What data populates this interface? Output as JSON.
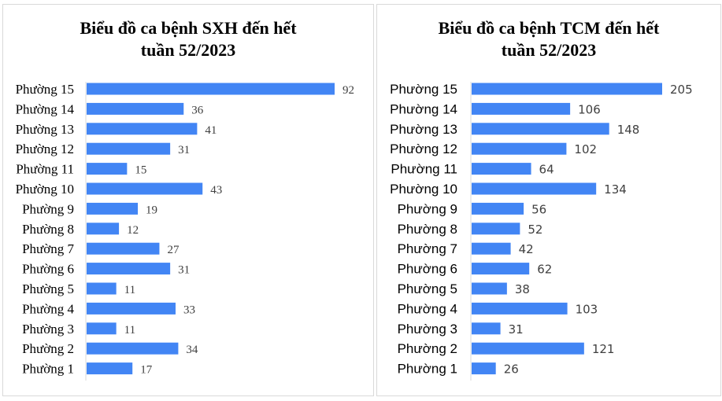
{
  "chart_data": [
    {
      "type": "bar",
      "orientation": "horizontal",
      "title_line1": "Biểu đồ ca bệnh SXH đến hết",
      "title_line2": "tuần 52/2023",
      "categories": [
        "Phường 15",
        "Phường 14",
        "Phường 13",
        "Phường 12",
        "Phường 11",
        "Phường 10",
        "Phường 9",
        "Phường 8",
        "Phường 7",
        "Phường 6",
        "Phường 5",
        "Phường 4",
        "Phường 3",
        "Phường 2",
        "Phường 1"
      ],
      "values": [
        92,
        36,
        41,
        31,
        15,
        43,
        19,
        12,
        27,
        31,
        11,
        33,
        11,
        34,
        17
      ],
      "xlim": [
        0,
        92
      ],
      "grid": false,
      "color": "#4285f4"
    },
    {
      "type": "bar",
      "orientation": "horizontal",
      "title_line1": "Biểu đồ ca bệnh TCM đến hết",
      "title_line2": "tuần 52/2023",
      "categories": [
        "Phường 15",
        "Phường 14",
        "Phường 13",
        "Phường 12",
        "Phường 11",
        "Phường 10",
        "Phường 9",
        "Phường 8",
        "Phường 7",
        "Phường 6",
        "Phường 5",
        "Phường 4",
        "Phường 3",
        "Phường 2",
        "Phường 1"
      ],
      "values": [
        205,
        106,
        148,
        102,
        64,
        134,
        56,
        52,
        42,
        62,
        38,
        103,
        31,
        121,
        26
      ],
      "xlim": [
        0,
        205
      ],
      "grid": false,
      "color": "#4285f4"
    }
  ]
}
